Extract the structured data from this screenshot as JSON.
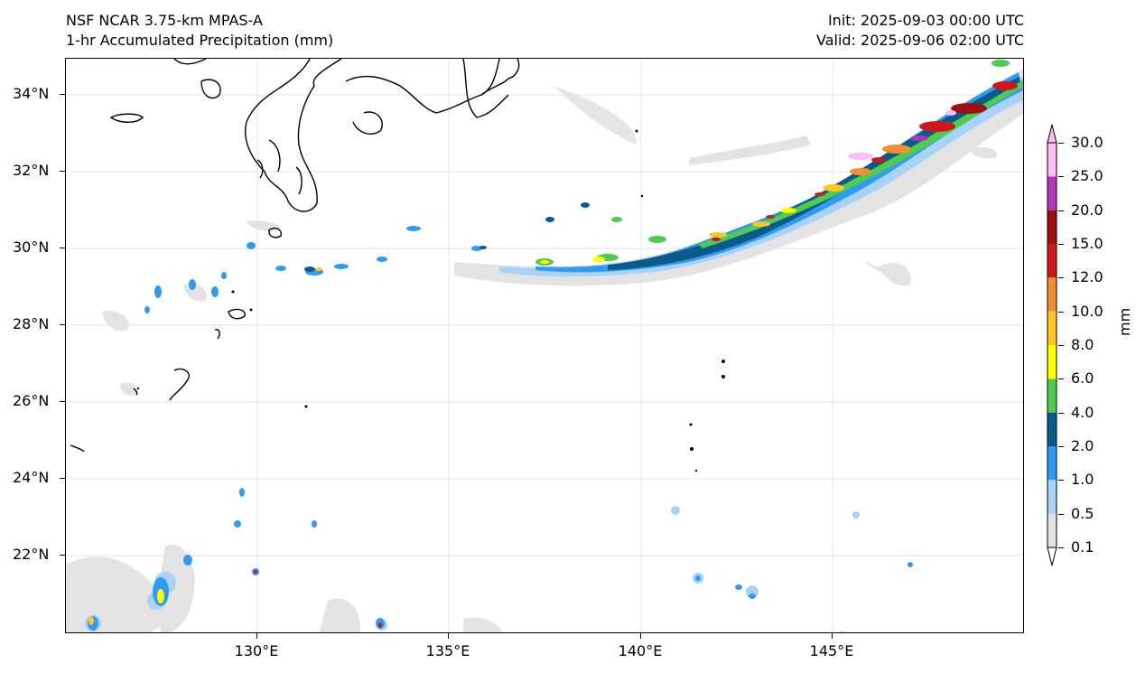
{
  "header": {
    "model_title": "NSF NCAR 3.75-km MPAS-A",
    "field_title": "1-hr Accumulated Precipitation (mm)",
    "init_label": "Init: 2025-09-03 00:00 UTC",
    "valid_label": "Valid: 2025-09-06 02:00 UTC"
  },
  "map": {
    "lat_range": [
      20.0,
      35.0
    ],
    "lon_range": [
      125.0,
      150.0
    ],
    "lat_ticks": [
      {
        "value": 34,
        "label": "34°N"
      },
      {
        "value": 32,
        "label": "32°N"
      },
      {
        "value": 30,
        "label": "30°N"
      },
      {
        "value": 28,
        "label": "28°N"
      },
      {
        "value": 26,
        "label": "26°N"
      },
      {
        "value": 24,
        "label": "24°N"
      },
      {
        "value": 22,
        "label": "22°N"
      }
    ],
    "lon_ticks": [
      {
        "value": 130,
        "label": "130°E"
      },
      {
        "value": 135,
        "label": "135°E"
      },
      {
        "value": 140,
        "label": "140°E"
      },
      {
        "value": 145,
        "label": "145°E"
      }
    ]
  },
  "colorbar": {
    "unit": "mm",
    "levels": [
      "0.1",
      "0.5",
      "1.0",
      "2.0",
      "4.0",
      "6.0",
      "8.0",
      "10.0",
      "12.0",
      "15.0",
      "20.0",
      "25.0",
      "30.0"
    ],
    "colors": [
      "#e3e3e3",
      "#a8d2f8",
      "#2f9cf2",
      "#0a5a8a",
      "#4fcc4f",
      "#ffff00",
      "#ffc525",
      "#f18f33",
      "#d0181c",
      "#a10e0e",
      "#b535b8",
      "#ffbdf8"
    ]
  }
}
